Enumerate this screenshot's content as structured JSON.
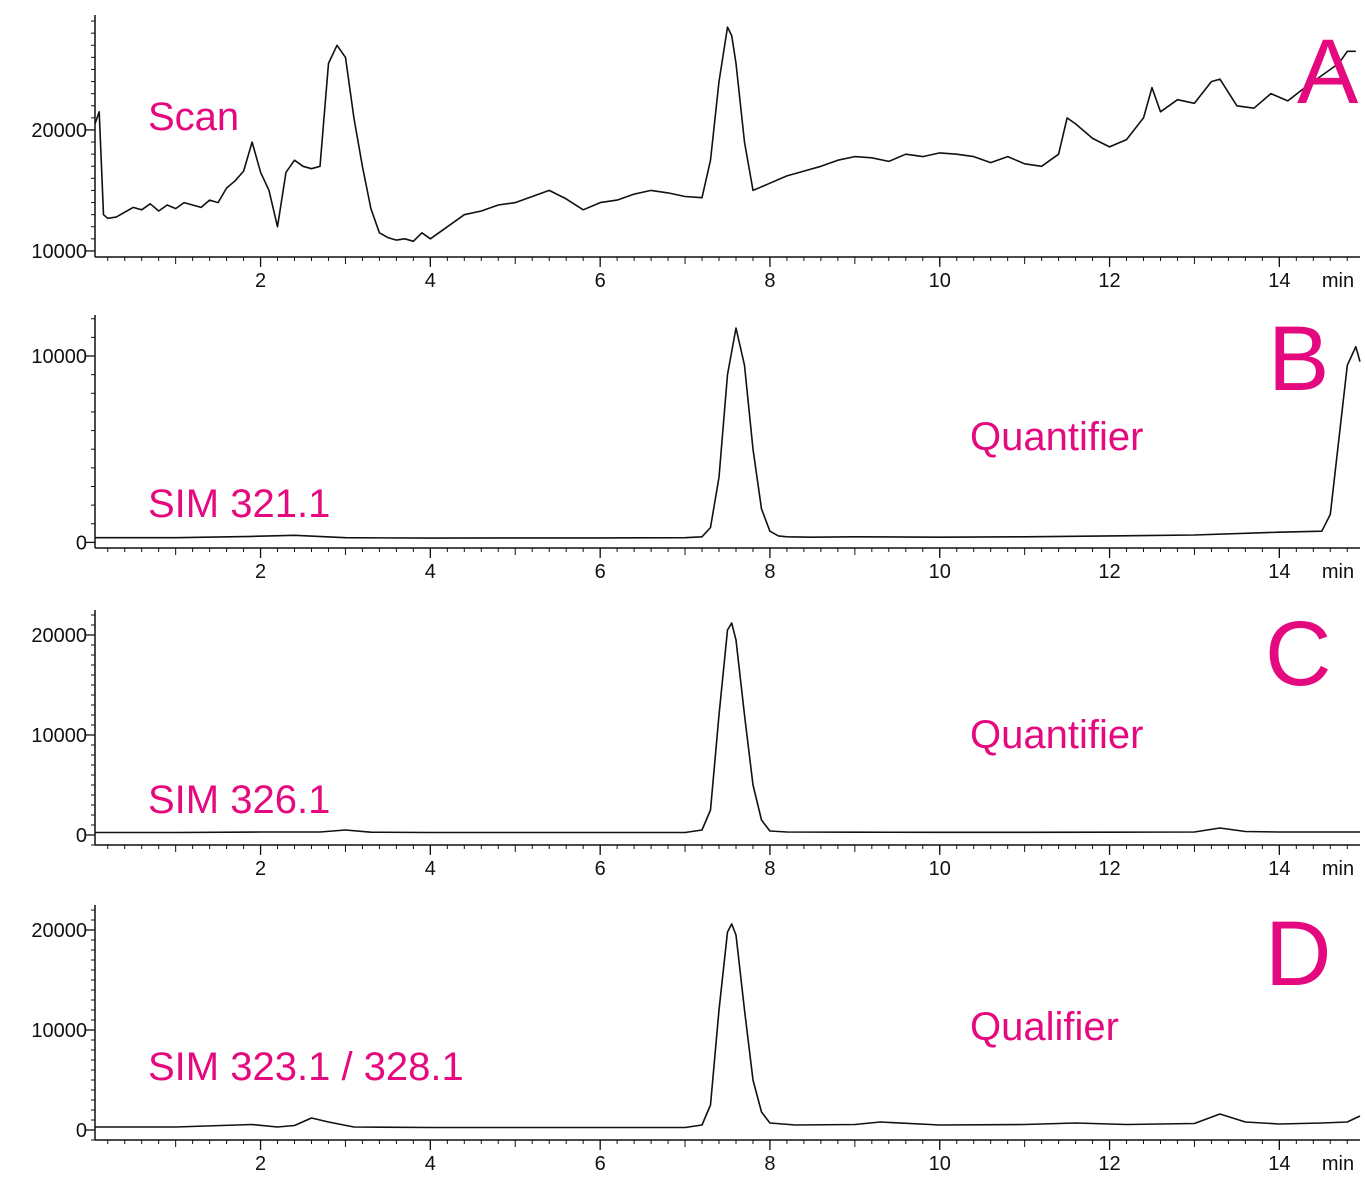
{
  "chart_data": [
    {
      "type": "line",
      "panel_label": "A",
      "annotations": [
        "Scan"
      ],
      "x_unit_label": "min",
      "xticks": [
        2,
        4,
        6,
        8,
        10,
        12,
        14
      ],
      "xtick_labels": [
        "2",
        "4",
        "6",
        "8",
        "10",
        "12",
        "14"
      ],
      "yticks": [
        10000,
        20000
      ],
      "ytick_labels": [
        "10000",
        "20000"
      ],
      "xlim": [
        0.05,
        14.95
      ],
      "ylim": [
        9500,
        29500
      ],
      "grid": false,
      "series": [
        {
          "x": [
            0.05,
            0.1,
            0.15,
            0.2,
            0.3,
            0.4,
            0.5,
            0.6,
            0.7,
            0.8,
            0.9,
            1.0,
            1.1,
            1.2,
            1.3,
            1.4,
            1.5,
            1.6,
            1.7,
            1.8,
            1.9,
            2.0,
            2.1,
            2.2,
            2.3,
            2.4,
            2.5,
            2.6,
            2.7,
            2.8,
            2.9,
            3.0,
            3.1,
            3.2,
            3.3,
            3.4,
            3.5,
            3.6,
            3.7,
            3.8,
            3.9,
            4.0,
            4.2,
            4.4,
            4.6,
            4.8,
            5.0,
            5.2,
            5.4,
            5.6,
            5.8,
            6.0,
            6.2,
            6.4,
            6.6,
            6.8,
            7.0,
            7.2,
            7.3,
            7.4,
            7.5,
            7.55,
            7.6,
            7.7,
            7.8,
            7.9,
            8.0,
            8.2,
            8.4,
            8.6,
            8.8,
            9.0,
            9.2,
            9.4,
            9.6,
            9.8,
            10.0,
            10.2,
            10.4,
            10.6,
            10.8,
            11.0,
            11.2,
            11.4,
            11.5,
            11.6,
            11.8,
            12.0,
            12.2,
            12.4,
            12.5,
            12.6,
            12.8,
            13.0,
            13.2,
            13.3,
            13.5,
            13.7,
            13.9,
            14.1,
            14.3,
            14.5,
            14.7,
            14.8,
            14.9
          ],
          "values": [
            20500,
            21500,
            13000,
            12700,
            12800,
            13200,
            13600,
            13400,
            13900,
            13300,
            13800,
            13500,
            14000,
            13800,
            13600,
            14200,
            14000,
            15200,
            15800,
            16600,
            19000,
            16500,
            15000,
            12000,
            16500,
            17500,
            17000,
            16800,
            17000,
            25500,
            27000,
            26000,
            21000,
            17000,
            13500,
            11500,
            11100,
            10900,
            11000,
            10800,
            11500,
            11000,
            12000,
            13000,
            13300,
            13800,
            14000,
            14500,
            15000,
            14300,
            13400,
            14000,
            14200,
            14700,
            15000,
            14800,
            14500,
            14400,
            17500,
            24000,
            28500,
            27800,
            25500,
            19000,
            15000,
            15300,
            15600,
            16200,
            16600,
            17000,
            17500,
            17800,
            17700,
            17400,
            18000,
            17800,
            18100,
            18000,
            17800,
            17300,
            17800,
            17200,
            17000,
            18000,
            21000,
            20500,
            19300,
            18600,
            19200,
            21000,
            23500,
            21500,
            22500,
            22200,
            24000,
            24200,
            22000,
            21800,
            23000,
            22400,
            23500,
            24500,
            25500,
            26500,
            26500
          ]
        }
      ]
    },
    {
      "type": "line",
      "panel_label": "B",
      "annotations": [
        "Quantifier",
        "SIM 321.1"
      ],
      "x_unit_label": "min",
      "xticks": [
        2,
        4,
        6,
        8,
        10,
        12,
        14
      ],
      "xtick_labels": [
        "2",
        "4",
        "6",
        "8",
        "10",
        "12",
        "14"
      ],
      "yticks": [
        0,
        10000
      ],
      "ytick_labels": [
        "0",
        "10000"
      ],
      "xlim": [
        0.05,
        14.95
      ],
      "ylim": [
        -300,
        12200
      ],
      "grid": false,
      "series": [
        {
          "x": [
            0.05,
            1.0,
            1.9,
            2.4,
            3.0,
            4.0,
            5.0,
            6.0,
            7.0,
            7.2,
            7.3,
            7.4,
            7.5,
            7.6,
            7.7,
            7.8,
            7.9,
            8.0,
            8.1,
            8.2,
            8.5,
            9.0,
            10.0,
            11.0,
            12.0,
            13.0,
            14.0,
            14.5,
            14.6,
            14.7,
            14.8,
            14.9,
            14.95
          ],
          "values": [
            250,
            250,
            320,
            380,
            250,
            230,
            240,
            240,
            250,
            300,
            800,
            3500,
            9000,
            11500,
            9500,
            5000,
            1800,
            600,
            350,
            300,
            280,
            300,
            280,
            300,
            350,
            400,
            550,
            600,
            1500,
            5500,
            9500,
            10500,
            9700
          ]
        }
      ]
    },
    {
      "type": "line",
      "panel_label": "C",
      "annotations": [
        "Quantifier",
        "SIM 326.1"
      ],
      "x_unit_label": "min",
      "xticks": [
        2,
        4,
        6,
        8,
        10,
        12,
        14
      ],
      "xtick_labels": [
        "2",
        "4",
        "6",
        "8",
        "10",
        "12",
        "14"
      ],
      "yticks": [
        0,
        10000,
        20000
      ],
      "ytick_labels": [
        "0",
        "10000",
        "20000"
      ],
      "xlim": [
        0.05,
        14.95
      ],
      "ylim": [
        -1000,
        22500
      ],
      "grid": false,
      "series": [
        {
          "x": [
            0.05,
            1.0,
            2.0,
            2.7,
            3.0,
            3.3,
            4.0,
            5.0,
            6.0,
            7.0,
            7.2,
            7.3,
            7.4,
            7.5,
            7.55,
            7.6,
            7.7,
            7.8,
            7.9,
            8.0,
            8.2,
            9.0,
            10.0,
            11.0,
            12.0,
            13.0,
            13.3,
            13.6,
            14.0,
            14.95
          ],
          "values": [
            250,
            250,
            300,
            300,
            500,
            280,
            250,
            250,
            250,
            250,
            500,
            2500,
            12000,
            20500,
            21200,
            19500,
            12000,
            5000,
            1500,
            400,
            300,
            280,
            270,
            270,
            280,
            300,
            700,
            350,
            300,
            300
          ]
        }
      ]
    },
    {
      "type": "line",
      "panel_label": "D",
      "annotations": [
        "Qualifier",
        "SIM 323.1 / 328.1"
      ],
      "x_unit_label": "min",
      "xticks": [
        2,
        4,
        6,
        8,
        10,
        12,
        14
      ],
      "xtick_labels": [
        "2",
        "4",
        "6",
        "8",
        "10",
        "12",
        "14"
      ],
      "yticks": [
        0,
        10000,
        20000
      ],
      "ytick_labels": [
        "0",
        "10000",
        "20000"
      ],
      "xlim": [
        0.05,
        14.95
      ],
      "ylim": [
        -1000,
        22500
      ],
      "grid": false,
      "series": [
        {
          "x": [
            0.05,
            1.0,
            1.9,
            2.2,
            2.4,
            2.6,
            2.8,
            3.1,
            4.0,
            5.0,
            6.0,
            7.0,
            7.2,
            7.3,
            7.4,
            7.5,
            7.55,
            7.6,
            7.7,
            7.8,
            7.9,
            8.0,
            8.3,
            9.0,
            9.3,
            10.0,
            11.0,
            11.6,
            12.2,
            13.0,
            13.3,
            13.6,
            14.0,
            14.5,
            14.8,
            14.95
          ],
          "values": [
            300,
            300,
            550,
            300,
            450,
            1200,
            800,
            300,
            250,
            250,
            250,
            250,
            500,
            2500,
            12000,
            19800,
            20600,
            19500,
            12000,
            5000,
            1800,
            700,
            500,
            550,
            800,
            500,
            550,
            700,
            550,
            650,
            1600,
            800,
            600,
            700,
            800,
            1400
          ]
        }
      ]
    }
  ],
  "colors": {
    "annotation": "#e5097f",
    "trace": "#111111",
    "axis": "#111111"
  }
}
